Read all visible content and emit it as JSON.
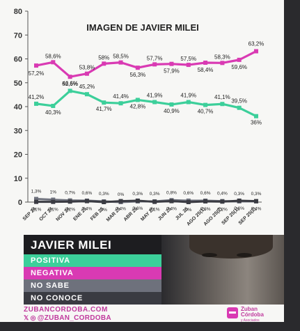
{
  "chart_data": {
    "type": "line",
    "title": "IMAGEN DE JAVIER MILEI",
    "categories": [
      "SEP 24",
      "OCT 24",
      "NOV 24",
      "ENE 25",
      "FEB 25",
      "MAR 25",
      "ABR 25",
      "MAY 25",
      "JUN 25",
      "JUL 25",
      "AGO 25(1)",
      "AGO 25(2)",
      "SEP 25(1)",
      "SEP 25(2)"
    ],
    "ylim": [
      0,
      80
    ],
    "yticks": [
      0,
      10,
      20,
      30,
      40,
      50,
      60,
      70,
      80
    ],
    "grid": false,
    "series": [
      {
        "name": "NEGATIVA",
        "color": "#d93ab3",
        "values": [
          57.2,
          58.6,
          52.5,
          53.8,
          58,
          58.5,
          56.3,
          57.7,
          57.9,
          57.5,
          58.4,
          58.3,
          59.6,
          63.2
        ],
        "labels": [
          "57,2%",
          "58,6%",
          "52,5%",
          "53,8%",
          "58%",
          "58,5%",
          "56,3%",
          "57,7%",
          "57,9%",
          "57,5%",
          "58,4%",
          "58,3%",
          "59,6%",
          "63,2%"
        ]
      },
      {
        "name": "POSITIVA",
        "color": "#3ccf9a",
        "values": [
          41.2,
          40.3,
          46.6,
          45.2,
          41.7,
          41.4,
          42.8,
          41.9,
          40.9,
          41.9,
          40.7,
          41.1,
          39.5,
          36
        ],
        "labels": [
          "41,2%",
          "40,3%",
          "46,6%",
          "45,2%",
          "41,7%",
          "41,4%",
          "42,8%",
          "41,9%",
          "40,9%",
          "41,9%",
          "40,7%",
          "41,1%",
          "39,5%",
          "36%"
        ]
      },
      {
        "name": "NO SABE",
        "color": "#6e717c",
        "values": [
          1.3,
          1,
          0.7,
          0.6,
          0.3,
          0,
          0.3,
          0.3,
          0.8,
          0.6,
          0.6,
          0.4,
          0.3,
          0.3
        ],
        "labels": [
          "1,3%",
          "1%",
          "0,7%",
          "0,6%",
          "0,3%",
          "0%",
          "0,3%",
          "0,3%",
          "0,8%",
          "0,6%",
          "0,6%",
          "0,4%",
          "0,3%",
          "0,3%"
        ]
      },
      {
        "name": "NO CONOCE",
        "color": "#3a3b42",
        "values": [
          0.1,
          0.1,
          0.2,
          0.4,
          0,
          0.4,
          0.6,
          0.1,
          0.4,
          0,
          0.3,
          0.2,
          0.6,
          0.4
        ],
        "labels": [
          "0,1%",
          "0,1%",
          "0,2%",
          "0,4%",
          "0%",
          "0,4%",
          "0,6%",
          "0,1%",
          "0,4%",
          "0%",
          "0,3%",
          "0,2%",
          "0,6%",
          "0,4%"
        ]
      }
    ]
  },
  "legend": {
    "title": "JAVIER MILEI",
    "items": [
      "POSITIVA",
      "NEGATIVA",
      "NO SABE",
      "NO CONOCE"
    ]
  },
  "footer": {
    "url": "ZUBANCORDOBA.COM",
    "social_handle": "@ZUBAN_CORDOBA",
    "brand_line1": "Zuban",
    "brand_line2": "Córdoba",
    "brand_line3": "y Asociados"
  },
  "icons": [
    "x-icon",
    "instagram-icon",
    "zuban-logo-icon"
  ]
}
